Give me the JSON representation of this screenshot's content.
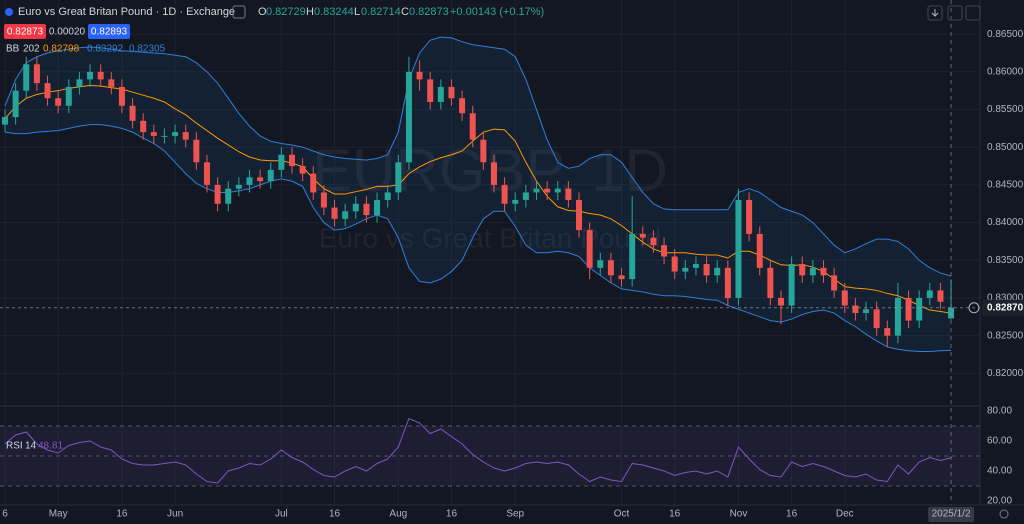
{
  "chart_data": {
    "type": "candlestick",
    "title": "Euro vs Great Britan Pound · 1D · Exchange",
    "watermark": "EURGBP, 1D",
    "watermark_subtitle": "Euro vs Great Britan Pound",
    "ohlc_labels": [
      "O",
      "H",
      "L",
      "C"
    ],
    "change": "+0.00143 (+0.17%)",
    "quote": {
      "sell": "0.82873",
      "spread": "0.00020",
      "buy": "0.82893"
    },
    "categories": [
      "6",
      null,
      null,
      null,
      null,
      "May",
      null,
      null,
      null,
      null,
      null,
      "16",
      null,
      null,
      null,
      null,
      "Jun",
      null,
      null,
      null,
      null,
      null,
      null,
      null,
      null,
      null,
      "Jul",
      null,
      null,
      null,
      null,
      "16",
      null,
      null,
      null,
      null,
      null,
      "Aug",
      null,
      null,
      null,
      null,
      "16",
      null,
      null,
      null,
      null,
      null,
      "Sep",
      null,
      null,
      null,
      null,
      null,
      null,
      null,
      null,
      null,
      "Oct",
      null,
      null,
      null,
      null,
      "16",
      null,
      null,
      null,
      null,
      null,
      "Nov",
      null,
      null,
      null,
      null,
      "16",
      null,
      null,
      null,
      null,
      "Dec",
      null,
      null,
      null,
      null,
      null,
      null,
      null,
      null,
      null,
      "2025/1/2"
    ],
    "open": [
      0.853,
      0.854,
      0.8575,
      0.861,
      0.8585,
      0.8565,
      0.8555,
      0.858,
      0.859,
      0.86,
      0.859,
      0.858,
      0.8555,
      0.8535,
      0.852,
      0.8515,
      0.8515,
      0.852,
      0.851,
      0.848,
      0.845,
      0.8425,
      0.8445,
      0.845,
      0.846,
      0.8455,
      0.847,
      0.849,
      0.8475,
      0.8465,
      0.844,
      0.842,
      0.8405,
      0.8415,
      0.8425,
      0.841,
      0.843,
      0.844,
      0.848,
      0.86,
      0.859,
      0.856,
      0.858,
      0.8565,
      0.8545,
      0.851,
      0.848,
      0.845,
      0.8425,
      0.843,
      0.844,
      0.8445,
      0.844,
      0.8445,
      0.843,
      0.839,
      0.834,
      0.835,
      0.833,
      0.8325,
      0.8385,
      0.838,
      0.837,
      0.8355,
      0.8335,
      0.834,
      0.8345,
      0.833,
      0.834,
      0.83,
      0.843,
      0.8385,
      0.834,
      0.83,
      0.829,
      0.8345,
      0.833,
      0.834,
      0.833,
      0.831,
      0.829,
      0.828,
      0.8285,
      0.826,
      0.825,
      0.83,
      0.827,
      0.83,
      0.831,
      0.82729
    ],
    "high": [
      0.855,
      0.8585,
      0.862,
      0.862,
      0.8595,
      0.8575,
      0.859,
      0.86,
      0.861,
      0.861,
      0.86,
      0.859,
      0.8565,
      0.8545,
      0.853,
      0.8525,
      0.853,
      0.853,
      0.852,
      0.849,
      0.846,
      0.8455,
      0.846,
      0.847,
      0.847,
      0.848,
      0.85,
      0.85,
      0.8485,
      0.8475,
      0.845,
      0.843,
      0.8425,
      0.8435,
      0.8435,
      0.844,
      0.845,
      0.849,
      0.862,
      0.8615,
      0.86,
      0.859,
      0.859,
      0.8575,
      0.8555,
      0.852,
      0.849,
      0.846,
      0.844,
      0.845,
      0.8455,
      0.8455,
      0.8455,
      0.8455,
      0.844,
      0.84,
      0.836,
      0.836,
      0.834,
      0.8435,
      0.8395,
      0.839,
      0.838,
      0.8365,
      0.835,
      0.8355,
      0.8355,
      0.835,
      0.835,
      0.8445,
      0.844,
      0.8395,
      0.835,
      0.831,
      0.8355,
      0.8355,
      0.835,
      0.835,
      0.834,
      0.832,
      0.83,
      0.8295,
      0.8295,
      0.827,
      0.832,
      0.831,
      0.831,
      0.832,
      0.832,
      0.83244
    ],
    "low": [
      0.852,
      0.853,
      0.8565,
      0.8575,
      0.8555,
      0.8545,
      0.8545,
      0.857,
      0.858,
      0.858,
      0.857,
      0.8545,
      0.8525,
      0.851,
      0.8505,
      0.8505,
      0.8505,
      0.85,
      0.847,
      0.844,
      0.8415,
      0.8415,
      0.8435,
      0.844,
      0.8445,
      0.8445,
      0.846,
      0.8465,
      0.8455,
      0.843,
      0.841,
      0.8395,
      0.8395,
      0.8405,
      0.84,
      0.84,
      0.842,
      0.843,
      0.847,
      0.8575,
      0.855,
      0.855,
      0.8555,
      0.8535,
      0.85,
      0.847,
      0.844,
      0.8415,
      0.8415,
      0.842,
      0.843,
      0.843,
      0.843,
      0.842,
      0.838,
      0.8325,
      0.833,
      0.832,
      0.8315,
      0.8315,
      0.837,
      0.836,
      0.8345,
      0.8325,
      0.8325,
      0.833,
      0.832,
      0.832,
      0.829,
      0.829,
      0.8375,
      0.833,
      0.829,
      0.8265,
      0.828,
      0.832,
      0.832,
      0.832,
      0.83,
      0.828,
      0.827,
      0.827,
      0.825,
      0.8235,
      0.824,
      0.826,
      0.826,
      0.829,
      0.8285,
      0.82714
    ],
    "close": [
      0.854,
      0.8575,
      0.861,
      0.8585,
      0.8565,
      0.8555,
      0.858,
      0.859,
      0.86,
      0.859,
      0.858,
      0.8555,
      0.8535,
      0.852,
      0.8515,
      0.8515,
      0.852,
      0.851,
      0.848,
      0.845,
      0.8425,
      0.8445,
      0.845,
      0.846,
      0.8455,
      0.847,
      0.849,
      0.8475,
      0.8465,
      0.844,
      0.842,
      0.8405,
      0.8415,
      0.8425,
      0.841,
      0.843,
      0.844,
      0.848,
      0.86,
      0.859,
      0.856,
      0.858,
      0.8565,
      0.8545,
      0.851,
      0.848,
      0.845,
      0.8425,
      0.843,
      0.844,
      0.8445,
      0.844,
      0.8445,
      0.843,
      0.839,
      0.834,
      0.835,
      0.833,
      0.8325,
      0.8385,
      0.838,
      0.837,
      0.8355,
      0.8335,
      0.834,
      0.8345,
      0.833,
      0.834,
      0.83,
      0.843,
      0.8385,
      0.834,
      0.83,
      0.829,
      0.8345,
      0.833,
      0.834,
      0.833,
      0.831,
      0.829,
      0.828,
      0.8285,
      0.826,
      0.825,
      0.83,
      0.827,
      0.83,
      0.831,
      0.8295,
      0.82873
    ],
    "up_color": "#26a69a",
    "down_color": "#ef5350",
    "ylim": [
      0.8158,
      0.869
    ],
    "yticks": [
      {
        "value": 0.82,
        "label": "0.82000"
      },
      {
        "value": 0.825,
        "label": "0.82500"
      },
      {
        "value": 0.83,
        "label": "0.83000"
      },
      {
        "value": 0.835,
        "label": "0.83500"
      },
      {
        "value": 0.84,
        "label": "0.84000"
      },
      {
        "value": 0.845,
        "label": "0.84500"
      },
      {
        "value": 0.85,
        "label": "0.85000"
      },
      {
        "value": 0.855,
        "label": "0.85500"
      },
      {
        "value": 0.86,
        "label": "0.86000"
      },
      {
        "value": 0.865,
        "label": "0.86500"
      }
    ],
    "price_line": {
      "value": 0.8287,
      "label": "0.82870"
    },
    "grid": true,
    "bb": {
      "label": "BB",
      "length": 20,
      "mult": 2,
      "basis_color": "#ff9800",
      "band_color": "#2f7fd8",
      "basis": [
        0.8538,
        0.8554,
        0.8565,
        0.857,
        0.8573,
        0.8575,
        0.8578,
        0.858,
        0.8582,
        0.8581,
        0.8579,
        0.8577,
        0.8573,
        0.8569,
        0.8565,
        0.856,
        0.8551,
        0.8543,
        0.8532,
        0.8522,
        0.8512,
        0.8503,
        0.8494,
        0.8487,
        0.8483,
        0.8482,
        0.8482,
        0.8479,
        0.8474,
        0.8458,
        0.8445,
        0.8438,
        0.8438,
        0.8441,
        0.8444,
        0.8448,
        0.8448,
        0.845,
        0.8465,
        0.8474,
        0.8481,
        0.8486,
        0.849,
        0.8495,
        0.8508,
        0.852,
        0.8524,
        0.8523,
        0.8508,
        0.848,
        0.8455,
        0.8435,
        0.8421,
        0.8416,
        0.8415,
        0.8412,
        0.841,
        0.8405,
        0.8396,
        0.8385,
        0.8374,
        0.8365,
        0.836,
        0.836,
        0.836,
        0.8358,
        0.8357,
        0.8357,
        0.8353,
        0.8362,
        0.8362,
        0.8357,
        0.835,
        0.8344,
        0.8343,
        0.8344,
        0.8341,
        0.8335,
        0.8325,
        0.8315,
        0.8313,
        0.8312,
        0.831,
        0.8306,
        0.8303,
        0.8297,
        0.829,
        0.8284,
        0.8282,
        0.82798
      ],
      "upper": [
        0.8555,
        0.859,
        0.8612,
        0.862,
        0.8625,
        0.8628,
        0.863,
        0.8632,
        0.8633,
        0.8632,
        0.863,
        0.8628,
        0.8627,
        0.8626,
        0.8625,
        0.8624,
        0.8622,
        0.862,
        0.8612,
        0.86,
        0.8585,
        0.8565,
        0.8545,
        0.8528,
        0.8515,
        0.8508,
        0.8505,
        0.8503,
        0.85,
        0.8495,
        0.849,
        0.8487,
        0.8485,
        0.8484,
        0.8483,
        0.8485,
        0.849,
        0.852,
        0.859,
        0.8625,
        0.8642,
        0.8646,
        0.8645,
        0.864,
        0.8636,
        0.8634,
        0.8632,
        0.863,
        0.862,
        0.859,
        0.855,
        0.851,
        0.848,
        0.8472,
        0.8475,
        0.8485,
        0.849,
        0.849,
        0.848,
        0.846,
        0.844,
        0.8425,
        0.8418,
        0.8417,
        0.8417,
        0.8417,
        0.8417,
        0.8417,
        0.8417,
        0.844,
        0.8445,
        0.844,
        0.843,
        0.842,
        0.8415,
        0.841,
        0.84,
        0.8385,
        0.837,
        0.836,
        0.8365,
        0.8372,
        0.8378,
        0.8378,
        0.8375,
        0.8365,
        0.835,
        0.834,
        0.8333,
        0.83292
      ],
      "lower": [
        0.852,
        0.8518,
        0.8518,
        0.852,
        0.8521,
        0.8522,
        0.8525,
        0.8528,
        0.853,
        0.853,
        0.8528,
        0.8525,
        0.852,
        0.8512,
        0.8505,
        0.8495,
        0.848,
        0.8465,
        0.8452,
        0.8445,
        0.844,
        0.844,
        0.8442,
        0.8445,
        0.845,
        0.8455,
        0.8458,
        0.8455,
        0.8448,
        0.842,
        0.84,
        0.839,
        0.8392,
        0.8398,
        0.8405,
        0.841,
        0.8405,
        0.838,
        0.834,
        0.8322,
        0.832,
        0.8325,
        0.8335,
        0.835,
        0.838,
        0.8405,
        0.8415,
        0.8415,
        0.8395,
        0.837,
        0.836,
        0.836,
        0.8362,
        0.836,
        0.8355,
        0.834,
        0.833,
        0.832,
        0.8312,
        0.831,
        0.8308,
        0.8305,
        0.8303,
        0.8303,
        0.8302,
        0.83,
        0.8298,
        0.8297,
        0.829,
        0.8285,
        0.828,
        0.8275,
        0.827,
        0.8268,
        0.8272,
        0.8278,
        0.8282,
        0.8284,
        0.828,
        0.827,
        0.8262,
        0.8252,
        0.8243,
        0.8235,
        0.8232,
        0.823,
        0.8229,
        0.8229,
        0.823,
        0.82305
      ]
    },
    "rsi": {
      "label": "RSI",
      "length": 14,
      "color": "#7e57c2",
      "ylim": [
        18,
        84
      ],
      "bands": [
        30,
        50,
        70
      ],
      "yticks": [
        {
          "value": 20,
          "label": "20.00"
        },
        {
          "value": 40,
          "label": "40.00"
        },
        {
          "value": 60,
          "label": "60.00"
        },
        {
          "value": 80,
          "label": "80.00"
        }
      ],
      "values": [
        58,
        64,
        66,
        58,
        54,
        52,
        57,
        59,
        60,
        56,
        54,
        48,
        45,
        44,
        44,
        45,
        46,
        44,
        38,
        33,
        32,
        40,
        42,
        45,
        44,
        48,
        54,
        49,
        46,
        41,
        37,
        36,
        40,
        43,
        40,
        45,
        48,
        56,
        75,
        72,
        65,
        68,
        63,
        58,
        51,
        46,
        42,
        40,
        42,
        45,
        46,
        45,
        46,
        44,
        38,
        33,
        36,
        34,
        33,
        45,
        44,
        42,
        40,
        37,
        39,
        40,
        38,
        40,
        36,
        56,
        48,
        41,
        37,
        36,
        46,
        43,
        45,
        43,
        40,
        37,
        36,
        38,
        34,
        33,
        44,
        38,
        46,
        49,
        47,
        48.81
      ]
    }
  }
}
